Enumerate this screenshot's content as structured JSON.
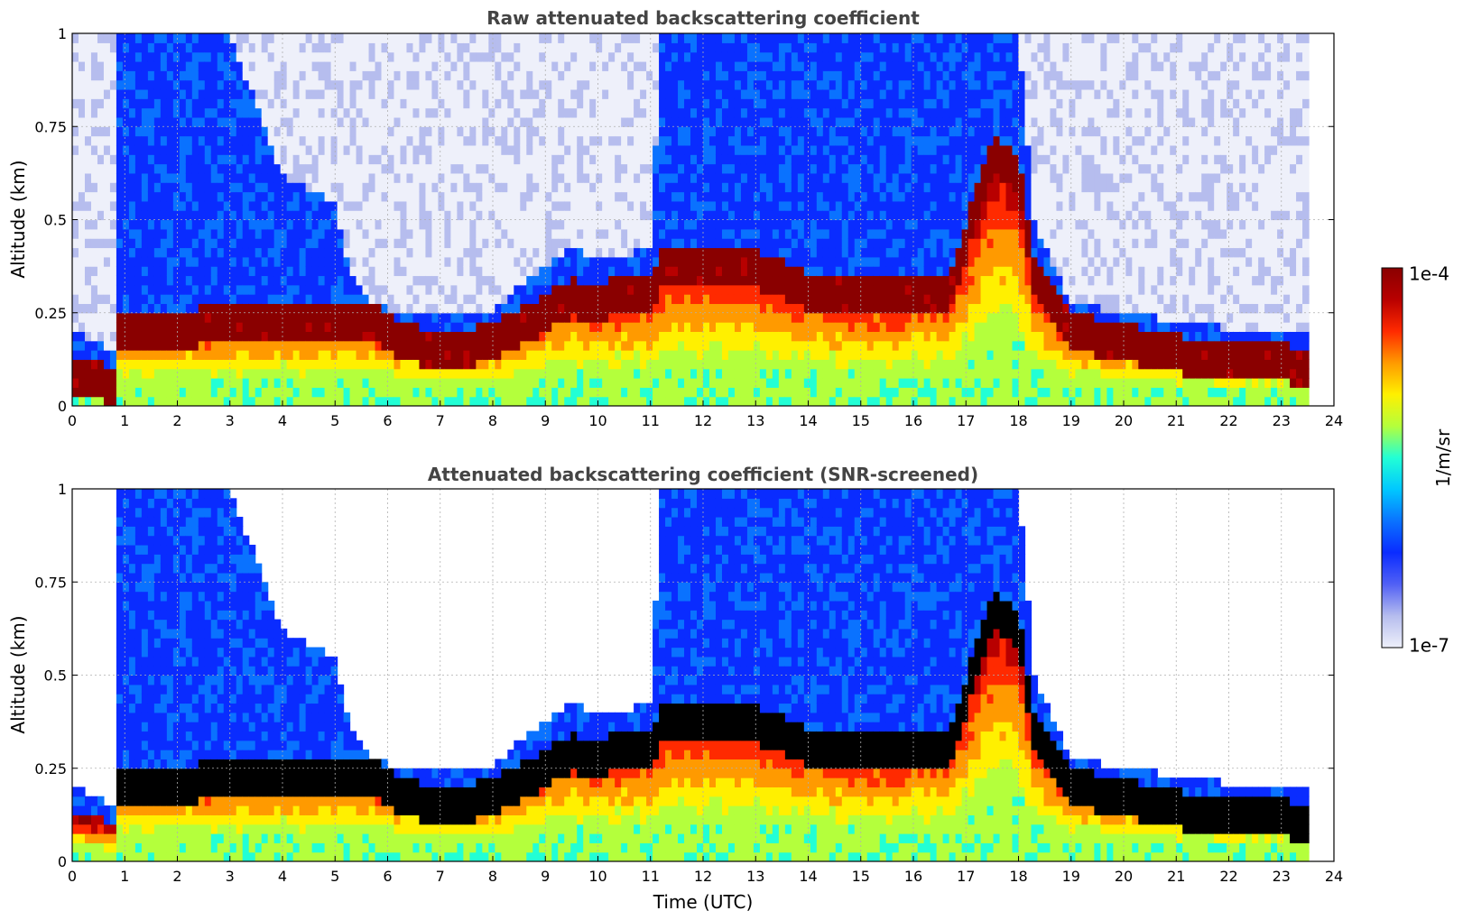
{
  "chart_data": [
    {
      "type": "heatmap",
      "title": "Raw attenuated backscattering coefficient",
      "xlabel": "",
      "ylabel": "Altitude (km)",
      "xlim": [
        0,
        24
      ],
      "ylim": [
        0,
        1
      ],
      "x_ticks": [
        "0",
        "1",
        "2",
        "3",
        "4",
        "5",
        "6",
        "7",
        "8",
        "9",
        "10",
        "11",
        "12",
        "13",
        "14",
        "15",
        "16",
        "17",
        "18",
        "19",
        "20",
        "21",
        "22",
        "23",
        "24"
      ],
      "y_ticks": [
        "0",
        "0.25",
        "0.5",
        "0.75",
        "1"
      ],
      "grid": true,
      "screened": false
    },
    {
      "type": "heatmap",
      "title": "Attenuated backscattering coefficient (SNR-screened)",
      "xlabel": "Time (UTC)",
      "ylabel": "Altitude (km)",
      "xlim": [
        0,
        24
      ],
      "ylim": [
        0,
        1
      ],
      "x_ticks": [
        "0",
        "1",
        "2",
        "3",
        "4",
        "5",
        "6",
        "7",
        "8",
        "9",
        "10",
        "11",
        "12",
        "13",
        "14",
        "15",
        "16",
        "17",
        "18",
        "19",
        "20",
        "21",
        "22",
        "23",
        "24"
      ],
      "y_ticks": [
        "0",
        "0.25",
        "0.5",
        "0.75",
        "1"
      ],
      "grid": true,
      "screened": true
    }
  ],
  "colorbar": {
    "label": "1/m/sr",
    "max_label": "1e-4",
    "min_label": "1e-7",
    "colormap": [
      "#eef0fa",
      "#b6bdee",
      "#5160f5",
      "#0a2cff",
      "#0a72ff",
      "#00c8ff",
      "#22ffd5",
      "#b4ff3c",
      "#fff000",
      "#ff9a00",
      "#ff2a00",
      "#b80000",
      "#8a0000"
    ]
  },
  "profile": {
    "time_hours": [
      0,
      0.8,
      0.9,
      1.5,
      3,
      4,
      5,
      5.3,
      5.7,
      6.3,
      7,
      8,
      9,
      9.5,
      10,
      10.3,
      11,
      11.2,
      13,
      14,
      15,
      16,
      16.7,
      17.5,
      18,
      18.3,
      19,
      20,
      21,
      22,
      23.5
    ],
    "aerosol_layer_top_km": [
      0.12,
      0.11,
      0.25,
      0.25,
      0.27,
      0.28,
      0.28,
      0.28,
      0.28,
      0.22,
      0.2,
      0.22,
      0.3,
      0.34,
      0.32,
      0.35,
      0.35,
      0.42,
      0.42,
      0.36,
      0.34,
      0.34,
      0.36,
      0.72,
      0.68,
      0.4,
      0.25,
      0.22,
      0.19,
      0.17,
      0.16
    ],
    "cloud_top_km": [
      0.2,
      0.15,
      1,
      1,
      1,
      0.62,
      0.55,
      0.35,
      0.28,
      0.25,
      0.25,
      0.26,
      0.38,
      0.42,
      0.4,
      0.4,
      0.42,
      1,
      1,
      1,
      1,
      1,
      1,
      1,
      1,
      0.5,
      0.28,
      0.25,
      0.23,
      0.21,
      0.2
    ],
    "data_end_hour": 23.5
  }
}
